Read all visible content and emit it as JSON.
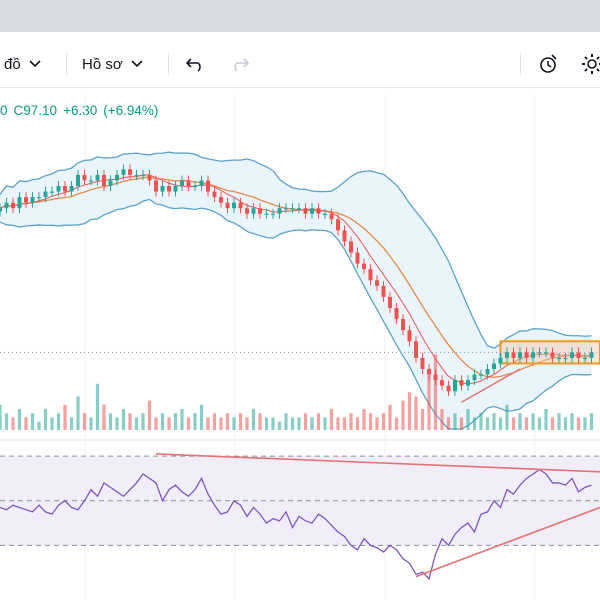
{
  "toolbar": {
    "chart_type_label": "đồ",
    "profile_label": "Hồ sơ",
    "undo_icon": "undo-icon",
    "redo_icon": "redo-icon",
    "alert_icon": "alert-clock-icon",
    "settings_icon": "gear-icon"
  },
  "legend": {
    "prefix": "0",
    "close": "C97.10",
    "change": "+6.30",
    "change_pct": "(+6.94%)"
  },
  "colors": {
    "up": "#26a69a",
    "down": "#ef5350",
    "bollinger": "#5aa3c8",
    "ma": "#e8884a",
    "rsi": "#7e57c2",
    "trend": "#e57373",
    "box": "#f09a1f"
  },
  "chart_data": {
    "type": "candlestick",
    "close_values": [
      90,
      91,
      90,
      92,
      91,
      92,
      92,
      93,
      93,
      94,
      93,
      94,
      96,
      95,
      95,
      96,
      94,
      95,
      96,
      97,
      96,
      96,
      96,
      95,
      93,
      94,
      93,
      94,
      95,
      94,
      94,
      95,
      93,
      92,
      91,
      90,
      91,
      90,
      89,
      90,
      89,
      89,
      89,
      90,
      90,
      90,
      90,
      89,
      90,
      89,
      89,
      88,
      86,
      84,
      82,
      80,
      79,
      77,
      76,
      74,
      72,
      70,
      68,
      66,
      63,
      61,
      60,
      59,
      58,
      57,
      59,
      58,
      59,
      60,
      60,
      61,
      62,
      63,
      64,
      63,
      64,
      63,
      64,
      64,
      64,
      63,
      63,
      63,
      64,
      63,
      63,
      64
    ],
    "volume_values": [
      6,
      4,
      3,
      5,
      3,
      4,
      2,
      5,
      3,
      4,
      6,
      3,
      8,
      4,
      3,
      11,
      6,
      4,
      3,
      5,
      4,
      3,
      4,
      7,
      3,
      4,
      3,
      4,
      5,
      3,
      4,
      6,
      3,
      4,
      3,
      4,
      3,
      4,
      3,
      5,
      4,
      3,
      3,
      2,
      4,
      3,
      3,
      4,
      3,
      4,
      3,
      5,
      3,
      3,
      4,
      3,
      5,
      4,
      3,
      4,
      6,
      3,
      7,
      9,
      8,
      5,
      13,
      18,
      5,
      3,
      4,
      3,
      5,
      3,
      4,
      3,
      4,
      3,
      6,
      3,
      4,
      3,
      4,
      3,
      5,
      3,
      4,
      3,
      4,
      3,
      3,
      4
    ],
    "rsi_values": [
      47,
      46,
      48,
      47,
      46,
      45,
      48,
      45,
      44,
      48,
      50,
      47,
      46,
      50,
      55,
      52,
      58,
      56,
      54,
      52,
      55,
      58,
      62,
      60,
      58,
      50,
      55,
      57,
      54,
      52,
      55,
      60,
      53,
      48,
      44,
      45,
      50,
      48,
      43,
      47,
      44,
      40,
      42,
      41,
      45,
      38,
      43,
      41,
      40,
      44,
      42,
      39,
      36,
      34,
      30,
      28,
      33,
      30,
      29,
      27,
      30,
      28,
      24,
      22,
      17,
      18,
      15,
      26,
      33,
      30,
      35,
      38,
      40,
      36,
      44,
      45,
      50,
      47,
      55,
      53,
      57,
      60,
      62,
      64,
      62,
      58,
      58,
      57,
      60,
      54,
      56,
      57
    ],
    "rsi_levels": [
      70,
      50,
      30
    ],
    "boxed_range": [
      62,
      66
    ]
  }
}
